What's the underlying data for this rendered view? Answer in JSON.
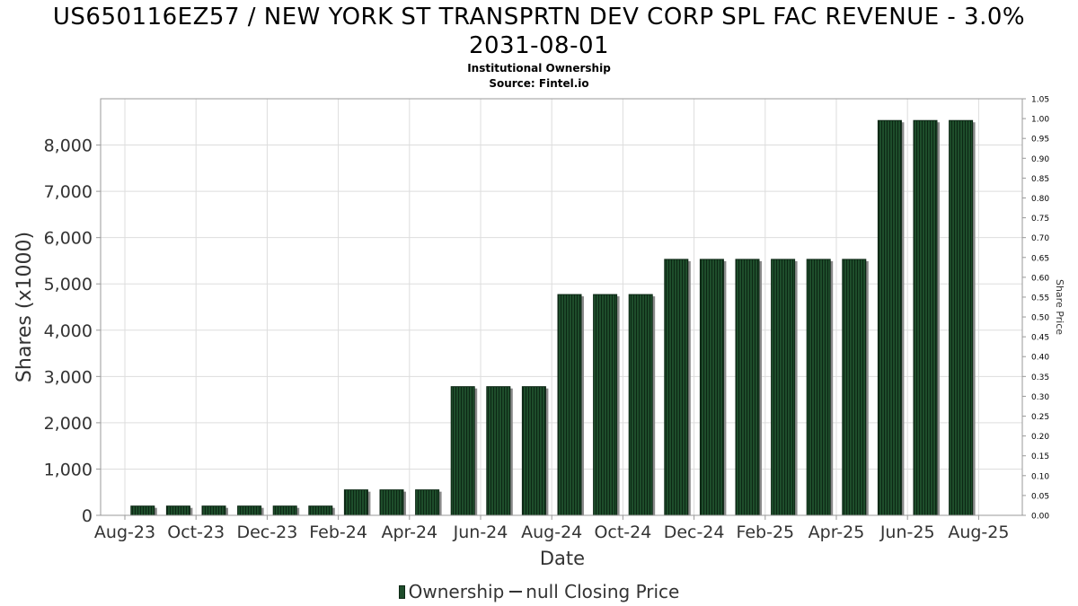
{
  "title_line1": "US650116EZ57 / NEW YORK ST TRANSPRTN DEV CORP SPL FAC REVENUE - 3.0%",
  "title_line2": "2031-08-01",
  "subtitle1": "Institutional Ownership",
  "subtitle2": "Source: Fintel.io",
  "legend": {
    "ownership": "Ownership",
    "price": "null Closing Price"
  },
  "colors": {
    "bar": "#1e4d2b",
    "bar_stripe": "#0c2714",
    "bar_shadow": "#8a8a8a",
    "grid": "#dddddd",
    "frame": "#999999"
  },
  "chart_data": {
    "type": "bar",
    "x_tick_labels": [
      "Aug-23",
      "Oct-23",
      "Dec-23",
      "Feb-24",
      "Apr-24",
      "Jun-24",
      "Aug-24",
      "Oct-24",
      "Dec-24",
      "Feb-25",
      "Apr-25",
      "Jun-25",
      "Aug-25"
    ],
    "series": [
      {
        "name": "Ownership",
        "values": [
          200,
          200,
          200,
          200,
          200,
          200,
          550,
          550,
          550,
          2780,
          2780,
          2780,
          4770,
          4770,
          4770,
          5530,
          5530,
          5530,
          5530,
          5530,
          5530,
          8530,
          8530,
          8530
        ]
      }
    ],
    "xlabel": "Date",
    "ylabel": "Shares (x1000)",
    "ylim": [
      0,
      9000
    ],
    "y_ticks": [
      "0",
      "1,000",
      "2,000",
      "3,000",
      "4,000",
      "5,000",
      "6,000",
      "7,000",
      "8,000"
    ],
    "y2label": "Share Price",
    "y2lim": [
      0,
      1.05
    ],
    "y2_ticks": [
      "0.00",
      "0.05",
      "0.10",
      "0.15",
      "0.20",
      "0.25",
      "0.30",
      "0.35",
      "0.40",
      "0.45",
      "0.50",
      "0.55",
      "0.60",
      "0.65",
      "0.70",
      "0.75",
      "0.80",
      "0.85",
      "0.90",
      "0.95",
      "1.00",
      "1.05"
    ],
    "grid": true,
    "legend_position": "bottom"
  }
}
